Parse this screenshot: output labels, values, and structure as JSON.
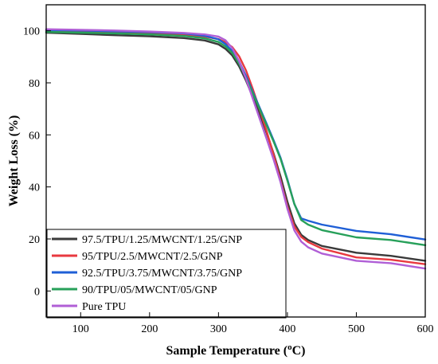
{
  "chart_data": {
    "type": "line",
    "xlabel": "Sample Temperature (°C)",
    "xlabel_parts": [
      "Sample Temperature (",
      "o",
      "C)"
    ],
    "ylabel": "Weight Loss (%)",
    "xlim": [
      50,
      600
    ],
    "ylim": [
      -10,
      110
    ],
    "x_ticks": [
      100,
      200,
      300,
      400,
      500,
      600
    ],
    "y_ticks": [
      0,
      20,
      40,
      60,
      80,
      100
    ],
    "grid": false,
    "legend_position": "bottom-left",
    "series": [
      {
        "name": "97.5/TPU/1.25/MWCNT/1.25/GNP",
        "color": "#3a3a3a",
        "x": [
          50,
          100,
          150,
          200,
          250,
          280,
          300,
          310,
          320,
          330,
          340,
          350,
          360,
          370,
          380,
          390,
          400,
          410,
          420,
          430,
          450,
          500,
          550,
          600
        ],
        "y": [
          99.3,
          98.8,
          98.3,
          97.9,
          97.2,
          96.3,
          94.8,
          93.1,
          90.5,
          86.3,
          80.8,
          74.5,
          67.8,
          60.7,
          52.8,
          44.0,
          34.3,
          26.0,
          21.6,
          19.6,
          17.3,
          14.7,
          13.5,
          11.6
        ]
      },
      {
        "name": "95/TPU/2.5/MWCNT/2.5/GNP",
        "color": "#e8393f",
        "x": [
          50,
          100,
          150,
          200,
          250,
          280,
          300,
          310,
          320,
          330,
          340,
          350,
          360,
          370,
          380,
          390,
          400,
          410,
          420,
          430,
          450,
          500,
          550,
          600
        ],
        "y": [
          99.9,
          99.6,
          99.3,
          99.0,
          98.5,
          97.8,
          96.8,
          95.6,
          93.7,
          90.2,
          84.7,
          77.5,
          69.6,
          61.3,
          52.3,
          42.4,
          32.4,
          24.8,
          20.8,
          18.8,
          16.3,
          12.9,
          12.0,
          10.3
        ]
      },
      {
        "name": "92.5/TPU/3.75/MWCNT/3.75/GNP",
        "color": "#1f5fd6",
        "x": [
          50,
          100,
          150,
          200,
          250,
          280,
          300,
          310,
          320,
          330,
          340,
          350,
          360,
          370,
          380,
          390,
          400,
          410,
          420,
          430,
          450,
          500,
          550,
          600
        ],
        "y": [
          100.3,
          100.1,
          99.8,
          99.5,
          99.0,
          98.1,
          96.7,
          94.9,
          92.2,
          88.2,
          82.6,
          76.4,
          70.3,
          64.2,
          57.9,
          51.2,
          42.9,
          33.4,
          27.9,
          27.0,
          25.5,
          23.1,
          21.8,
          19.8
        ]
      },
      {
        "name": "90/TPU/05/MWCNT/05/GNP",
        "color": "#27a05a",
        "x": [
          50,
          100,
          150,
          200,
          250,
          280,
          300,
          310,
          320,
          330,
          340,
          350,
          360,
          370,
          380,
          390,
          400,
          410,
          420,
          430,
          450,
          500,
          550,
          600
        ],
        "y": [
          99.6,
          99.3,
          99.0,
          98.6,
          98.0,
          97.1,
          95.7,
          94.0,
          91.5,
          87.3,
          81.8,
          75.9,
          69.8,
          63.6,
          57.4,
          50.8,
          42.4,
          33.5,
          27.3,
          25.5,
          23.4,
          20.6,
          19.6,
          17.6
        ]
      },
      {
        "name": "Pure TPU",
        "color": "#b05fd6",
        "x": [
          50,
          100,
          150,
          200,
          250,
          280,
          300,
          310,
          320,
          330,
          340,
          350,
          360,
          370,
          380,
          390,
          400,
          410,
          420,
          430,
          450,
          500,
          550,
          600
        ],
        "y": [
          100.6,
          100.4,
          100.1,
          99.7,
          99.2,
          98.6,
          97.8,
          96.4,
          93.3,
          88.3,
          81.5,
          73.8,
          66.0,
          58.4,
          50.5,
          41.8,
          31.6,
          23.3,
          19.0,
          16.8,
          14.4,
          11.6,
          10.7,
          8.6
        ]
      }
    ]
  }
}
